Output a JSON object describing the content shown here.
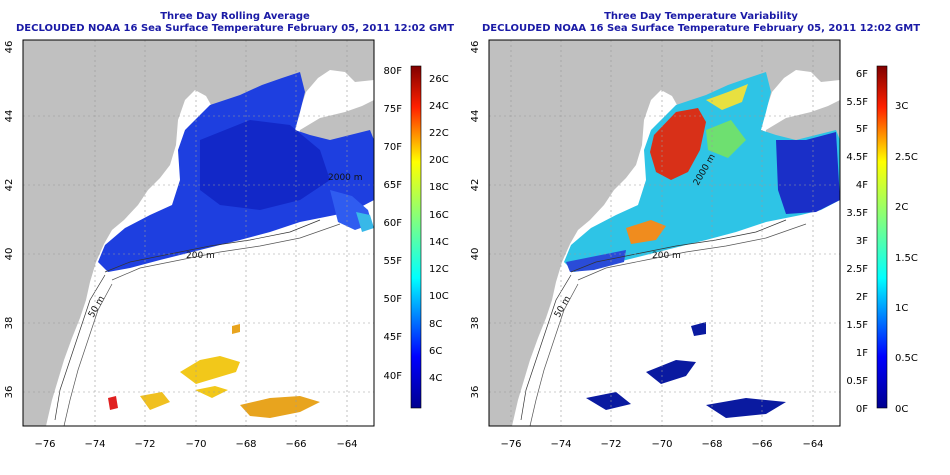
{
  "panels": [
    {
      "title": "Three Day Rolling Average",
      "subtitle": "DECLOUDED NOAA 16 Sea Surface Temperature February 05, 2011 12:02 GMT",
      "colorbar_f": [
        "80F",
        "75F",
        "70F",
        "65F",
        "60F",
        "55F",
        "50F",
        "45F",
        "40F"
      ],
      "colorbar_c": [
        "26C",
        "24C",
        "22C",
        "20C",
        "18C",
        "16C",
        "14C",
        "12C",
        "10C",
        "8C",
        "6C",
        "4C"
      ]
    },
    {
      "title": "Three Day Temperature Variability",
      "subtitle": "DECLOUDED NOAA 16 Sea Surface Temperature February 05, 2011 12:02 GMT",
      "colorbar_f": [
        "6F",
        "5.5F",
        "5F",
        "4.5F",
        "4F",
        "3.5F",
        "3F",
        "2.5F",
        "2F",
        "1.5F",
        "1F",
        "0.5F",
        "0F"
      ],
      "colorbar_c": [
        "3C",
        "2.5C",
        "2C",
        "1.5C",
        "1C",
        "0.5C",
        "0C"
      ]
    }
  ],
  "x_ticks": [
    "−76",
    "−74",
    "−72",
    "−70",
    "−68",
    "−66",
    "−64"
  ],
  "y_ticks": [
    "46",
    "44",
    "42",
    "40",
    "38",
    "36"
  ],
  "contour_labels": [
    "200 m",
    "200 m",
    "2000 m",
    "2000 m",
    "50 m"
  ],
  "colors": {
    "land": "#c0c0c0",
    "ocean_cold": "#1e3fe0",
    "title_blue": "#1a1aa6",
    "grid": "#9a9a9a"
  }
}
